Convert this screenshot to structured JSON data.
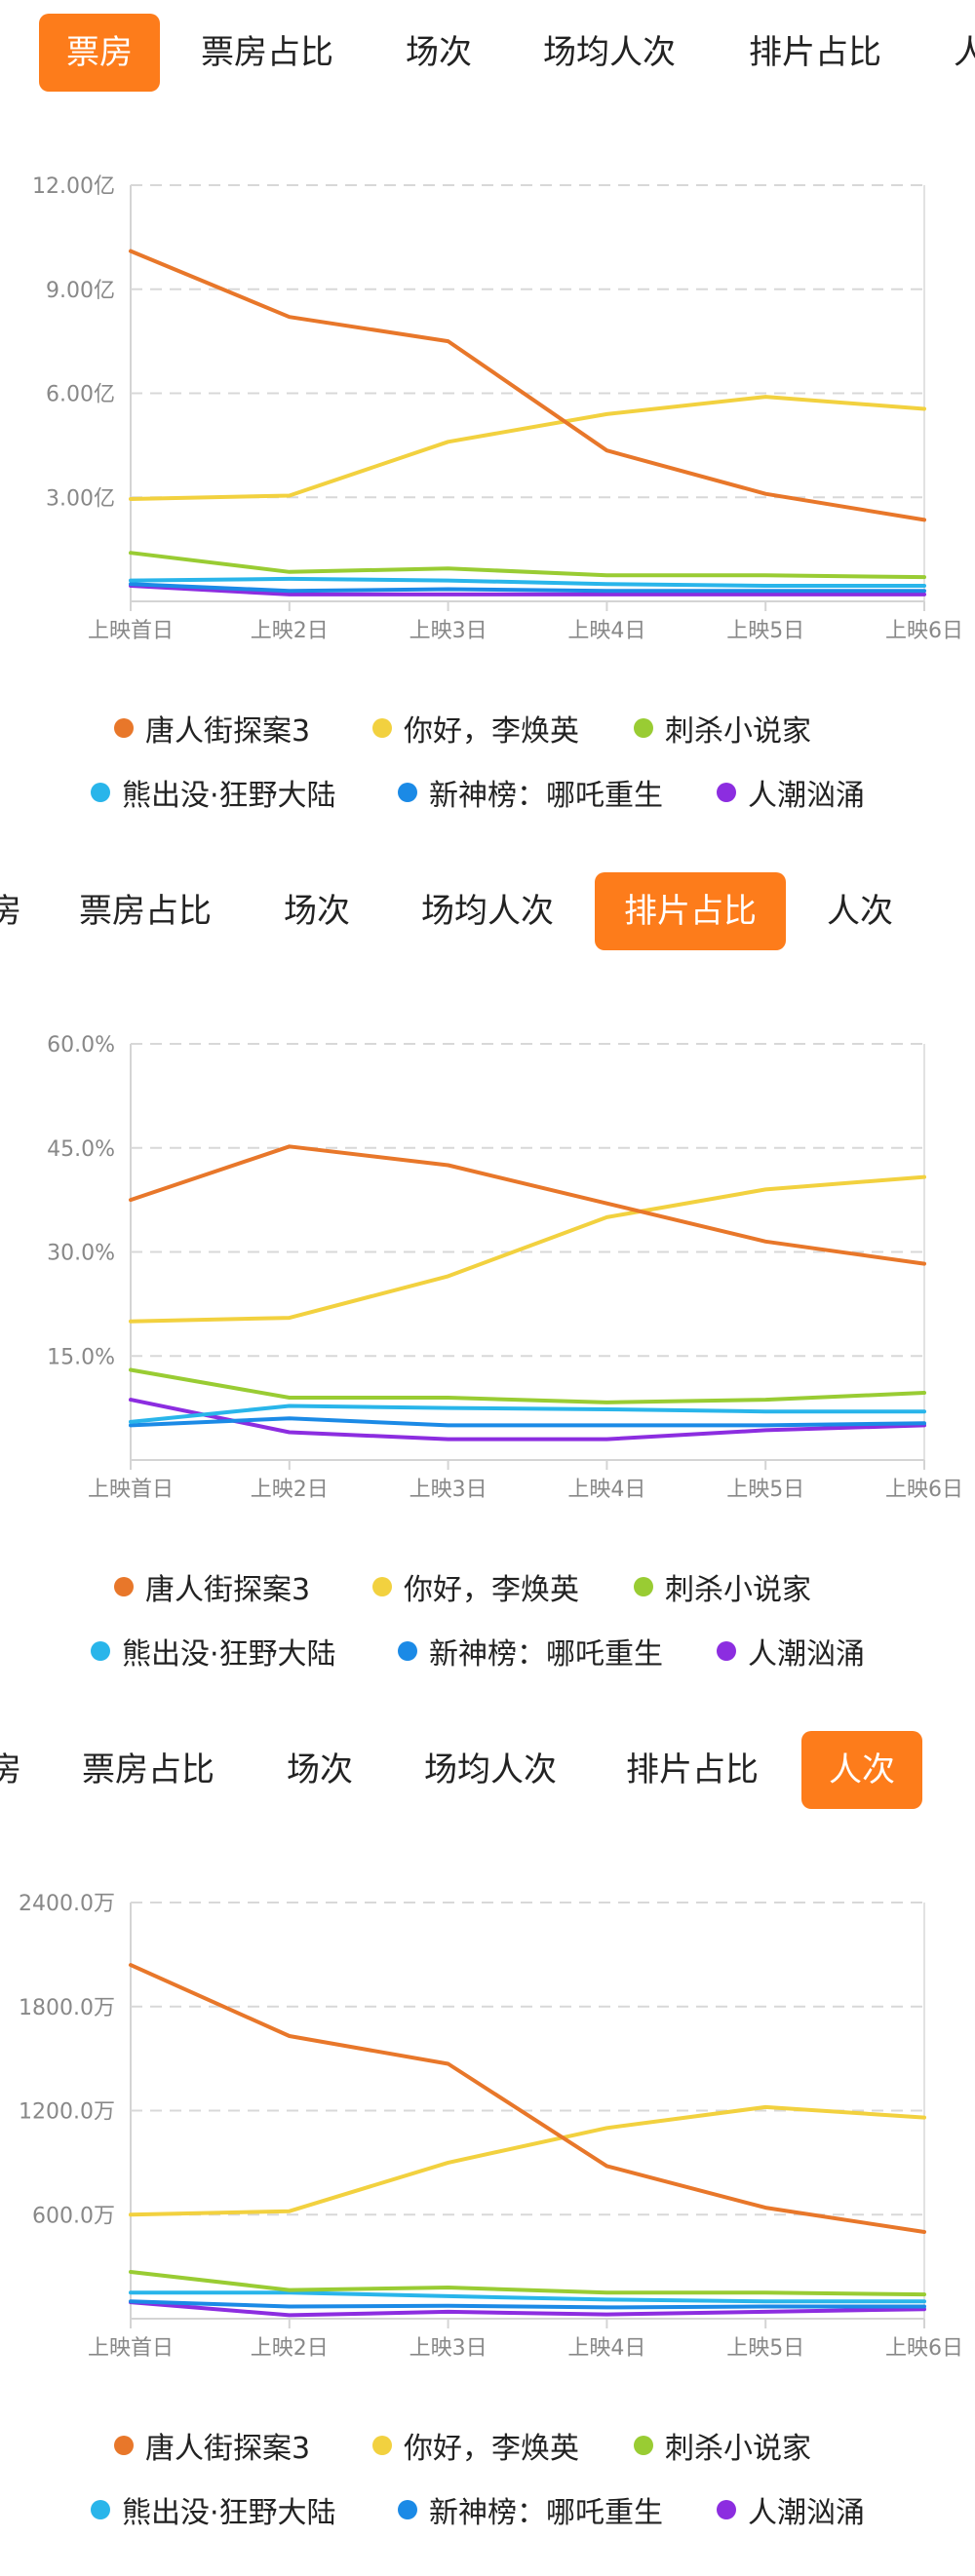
{
  "tab_labels": [
    "票房",
    "票房占比",
    "场次",
    "场均人次",
    "排片占比",
    "人次"
  ],
  "colors": {
    "accent": "#fd7c1b",
    "series": [
      "#e8772a",
      "#f2d13f",
      "#99cc33",
      "#29b5ea",
      "#1b8ae6",
      "#8c2de0"
    ]
  },
  "chart_data": [
    {
      "type": "line",
      "title": "",
      "active_tab": "票房",
      "x": [
        "上映首日",
        "上映2日",
        "上映3日",
        "上映4日",
        "上映5日",
        "上映6日"
      ],
      "ylim": [
        0,
        12
      ],
      "y_ticks": [
        3,
        6,
        9,
        12
      ],
      "y_tick_labels": [
        "3.00亿",
        "6.00亿",
        "9.00亿",
        "12.00亿"
      ],
      "grid": true,
      "legend_position": "bottom",
      "series": [
        {
          "name": "唐人街探案3",
          "values": [
            10.1,
            8.2,
            7.5,
            4.35,
            3.1,
            2.35
          ]
        },
        {
          "name": "你好，李焕英",
          "values": [
            2.95,
            3.05,
            4.6,
            5.4,
            5.9,
            5.55
          ]
        },
        {
          "name": "刺杀小说家",
          "values": [
            1.4,
            0.85,
            0.95,
            0.75,
            0.75,
            0.7
          ]
        },
        {
          "name": "熊出没·狂野大陆",
          "values": [
            0.6,
            0.65,
            0.6,
            0.5,
            0.45,
            0.45
          ]
        },
        {
          "name": "新神榜：哪吒重生",
          "values": [
            0.5,
            0.3,
            0.35,
            0.3,
            0.3,
            0.3
          ]
        },
        {
          "name": "人潮汹涌",
          "values": [
            0.45,
            0.2,
            0.2,
            0.2,
            0.2,
            0.2
          ]
        }
      ]
    },
    {
      "type": "line",
      "title": "",
      "active_tab": "排片占比",
      "x": [
        "上映首日",
        "上映2日",
        "上映3日",
        "上映4日",
        "上映5日",
        "上映6日"
      ],
      "ylim": [
        0,
        60
      ],
      "y_ticks": [
        15,
        30,
        45,
        60
      ],
      "y_tick_labels": [
        "15.0%",
        "30.0%",
        "45.0%",
        "60.0%"
      ],
      "grid": true,
      "legend_position": "bottom",
      "series": [
        {
          "name": "唐人街探案3",
          "values": [
            37.5,
            45.2,
            42.5,
            37.0,
            31.5,
            28.3
          ]
        },
        {
          "name": "你好，李焕英",
          "values": [
            20.0,
            20.5,
            26.5,
            35.0,
            39.0,
            40.8
          ]
        },
        {
          "name": "刺杀小说家",
          "values": [
            13.0,
            9.0,
            9.0,
            8.3,
            8.7,
            9.7
          ]
        },
        {
          "name": "熊出没·狂野大陆",
          "values": [
            5.5,
            7.8,
            7.5,
            7.3,
            7.0,
            7.0
          ]
        },
        {
          "name": "新神榜：哪吒重生",
          "values": [
            5.0,
            6.0,
            5.0,
            5.0,
            5.0,
            5.3
          ]
        },
        {
          "name": "人潮汹涌",
          "values": [
            8.7,
            4.0,
            3.0,
            3.0,
            4.3,
            5.0
          ]
        }
      ]
    },
    {
      "type": "line",
      "title": "",
      "active_tab": "人次",
      "x": [
        "上映首日",
        "上映2日",
        "上映3日",
        "上映4日",
        "上映5日",
        "上映6日"
      ],
      "ylim": [
        0,
        2400
      ],
      "y_ticks": [
        600,
        1200,
        1800,
        2400
      ],
      "y_tick_labels": [
        "600.0万",
        "1200.0万",
        "1800.0万",
        "2400.0万"
      ],
      "grid": true,
      "legend_position": "bottom",
      "series": [
        {
          "name": "唐人街探案3",
          "values": [
            2040,
            1630,
            1470,
            880,
            640,
            500
          ]
        },
        {
          "name": "你好，李焕英",
          "values": [
            600,
            620,
            900,
            1100,
            1220,
            1160
          ]
        },
        {
          "name": "刺杀小说家",
          "values": [
            270,
            165,
            180,
            150,
            150,
            140
          ]
        },
        {
          "name": "熊出没·狂野大陆",
          "values": [
            150,
            150,
            130,
            110,
            100,
            100
          ]
        },
        {
          "name": "新神榜：哪吒重生",
          "values": [
            100,
            70,
            75,
            65,
            70,
            70
          ]
        },
        {
          "name": "人潮汹涌",
          "values": [
            95,
            20,
            40,
            25,
            40,
            55
          ]
        }
      ]
    }
  ]
}
